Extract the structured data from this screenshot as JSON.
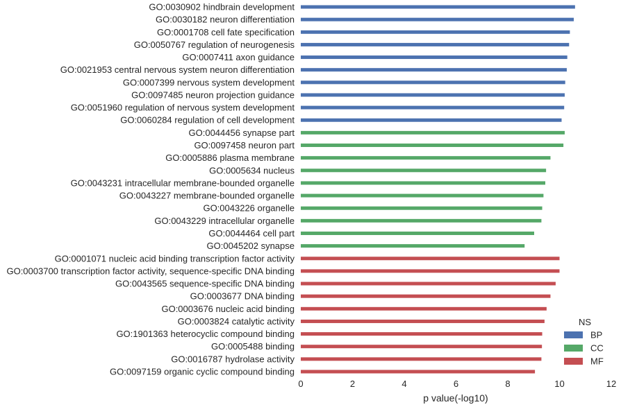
{
  "chart_data": {
    "type": "bar",
    "orientation": "horizontal",
    "xlabel": "p value(-log10)",
    "xlim": [
      0,
      12
    ],
    "xticks": [
      "0",
      "2",
      "4",
      "6",
      "8",
      "10",
      "12"
    ],
    "grid": false,
    "legend": {
      "title": "NS",
      "placement": "bottom-right",
      "entries": [
        {
          "name": "BP",
          "color": "#4c72b0"
        },
        {
          "name": "CC",
          "color": "#55a868"
        },
        {
          "name": "MF",
          "color": "#c44e52"
        }
      ]
    },
    "bars": [
      {
        "label": "GO:0030902 hindbrain development",
        "value": 10.6,
        "ns": "BP"
      },
      {
        "label": "GO:0030182 neuron differentiation",
        "value": 10.55,
        "ns": "BP"
      },
      {
        "label": "GO:0001708 cell fate specification",
        "value": 10.4,
        "ns": "BP"
      },
      {
        "label": "GO:0050767 regulation of neurogenesis",
        "value": 10.37,
        "ns": "BP"
      },
      {
        "label": "GO:0007411 axon guidance",
        "value": 10.3,
        "ns": "BP"
      },
      {
        "label": "GO:0021953 central nervous system neuron differentiation",
        "value": 10.28,
        "ns": "BP"
      },
      {
        "label": "GO:0007399 nervous system development",
        "value": 10.22,
        "ns": "BP"
      },
      {
        "label": "GO:0097485 neuron projection guidance",
        "value": 10.2,
        "ns": "BP"
      },
      {
        "label": "GO:0051960 regulation of nervous system development",
        "value": 10.18,
        "ns": "BP"
      },
      {
        "label": "GO:0060284 regulation of cell development",
        "value": 10.08,
        "ns": "BP"
      },
      {
        "label": "GO:0044456 synapse part",
        "value": 10.2,
        "ns": "CC"
      },
      {
        "label": "GO:0097458 neuron part",
        "value": 10.15,
        "ns": "CC"
      },
      {
        "label": "GO:0005886 plasma membrane",
        "value": 9.65,
        "ns": "CC"
      },
      {
        "label": "GO:0005634 nucleus",
        "value": 9.48,
        "ns": "CC"
      },
      {
        "label": "GO:0043231 intracellular membrane-bounded organelle",
        "value": 9.45,
        "ns": "CC"
      },
      {
        "label": "GO:0043227 membrane-bounded organelle",
        "value": 9.38,
        "ns": "CC"
      },
      {
        "label": "GO:0043226 organelle",
        "value": 9.33,
        "ns": "CC"
      },
      {
        "label": "GO:0043229 intracellular organelle",
        "value": 9.3,
        "ns": "CC"
      },
      {
        "label": "GO:0044464 cell part",
        "value": 9.02,
        "ns": "CC"
      },
      {
        "label": "GO:0045202 synapse",
        "value": 8.65,
        "ns": "CC"
      },
      {
        "label": "GO:0001071 nucleic acid binding transcription factor activity",
        "value": 10.0,
        "ns": "MF"
      },
      {
        "label": "GO:0003700 transcription factor activity, sequence-specific DNA binding",
        "value": 10.0,
        "ns": "MF"
      },
      {
        "label": "GO:0043565 sequence-specific DNA binding",
        "value": 9.85,
        "ns": "MF"
      },
      {
        "label": "GO:0003677 DNA binding",
        "value": 9.65,
        "ns": "MF"
      },
      {
        "label": "GO:0003676 nucleic acid binding",
        "value": 9.5,
        "ns": "MF"
      },
      {
        "label": "GO:0003824 catalytic activity",
        "value": 9.42,
        "ns": "MF"
      },
      {
        "label": "GO:1901363 heterocyclic compound binding",
        "value": 9.33,
        "ns": "MF"
      },
      {
        "label": "GO:0005488 binding",
        "value": 9.32,
        "ns": "MF"
      },
      {
        "label": "GO:0016787 hydrolase activity",
        "value": 9.3,
        "ns": "MF"
      },
      {
        "label": "GO:0097159 organic cyclic compound binding",
        "value": 9.05,
        "ns": "MF"
      }
    ]
  }
}
